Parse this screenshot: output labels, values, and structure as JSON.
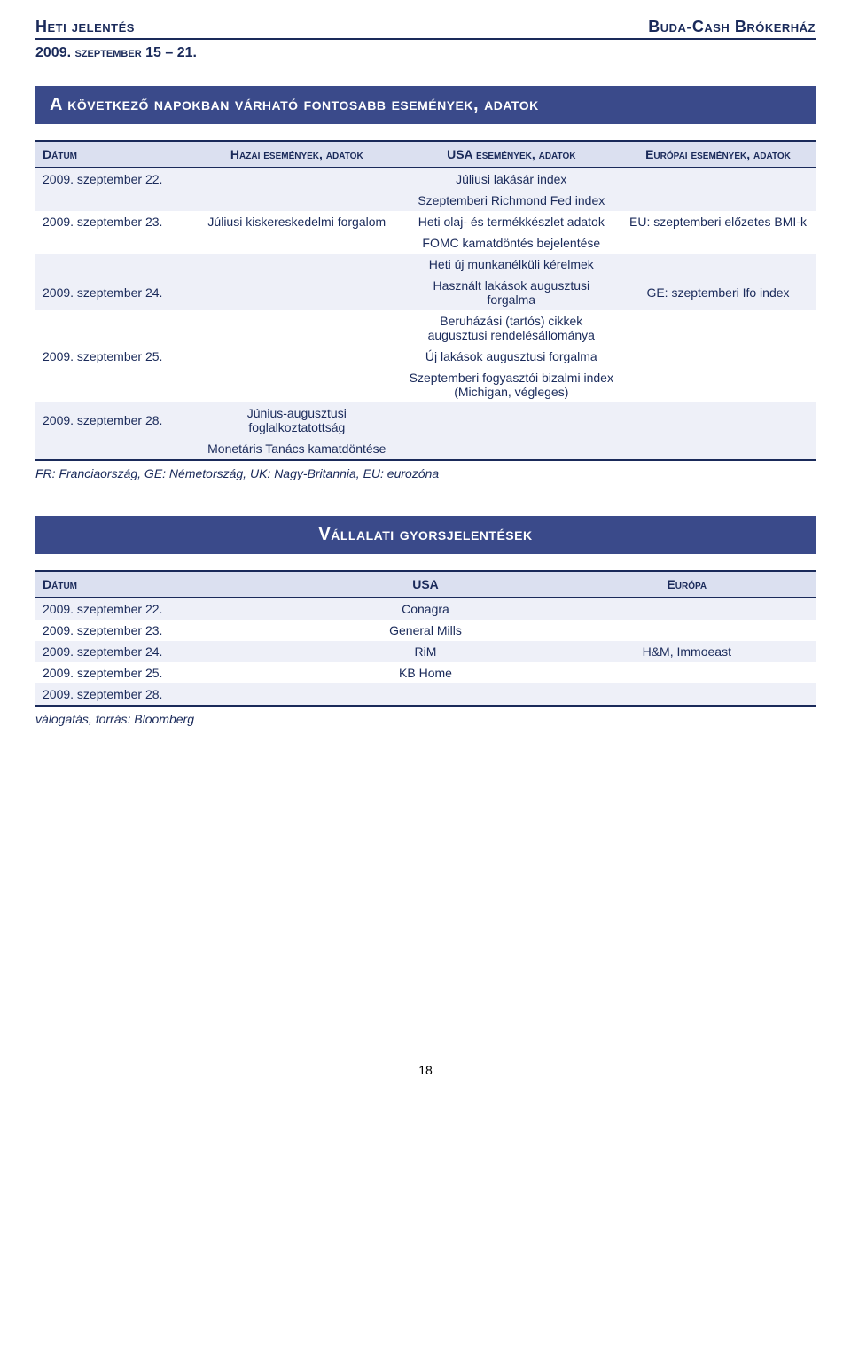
{
  "header": {
    "left": "Heti jelentés",
    "right": "Buda-Cash Brókerház",
    "sub": "2009. szeptember 15 – 21."
  },
  "section1": {
    "title": "A következő napokban várható fontosabb események, adatok",
    "columns": [
      "Dátum",
      "Hazai események, adatok",
      "USA események, adatok",
      "Európai események, adatok"
    ],
    "rows": [
      {
        "date": "2009. szeptember 22.",
        "hazai": "",
        "usa": "Júliusi lakásár index",
        "europa": "",
        "cls": "even"
      },
      {
        "date": "",
        "hazai": "",
        "usa": "Szeptemberi Richmond Fed index",
        "europa": "",
        "cls": "even"
      },
      {
        "date": "2009. szeptember 23.",
        "hazai": "Júliusi kiskereskedelmi forgalom",
        "usa": "Heti olaj- és termékkészlet adatok",
        "europa": "EU: szeptemberi előzetes BMI-k",
        "cls": "odd"
      },
      {
        "date": "",
        "hazai": "",
        "usa": "FOMC kamatdöntés bejelentése",
        "europa": "",
        "cls": "odd"
      },
      {
        "date": "",
        "hazai": "",
        "usa": "Heti új munkanélküli kérelmek",
        "europa": "",
        "cls": "even"
      },
      {
        "date": "2009. szeptember 24.",
        "hazai": "",
        "usa": "Használt lakások augusztusi forgalma",
        "europa": "GE: szeptemberi Ifo index",
        "cls": "even"
      },
      {
        "date": "",
        "hazai": "",
        "usa": "Beruházási (tartós) cikkek augusztusi rendelésállománya",
        "europa": "",
        "cls": "odd"
      },
      {
        "date": "2009. szeptember 25.",
        "hazai": "",
        "usa": "Új lakások augusztusi forgalma",
        "europa": "",
        "cls": "odd"
      },
      {
        "date": "",
        "hazai": "",
        "usa": "Szeptemberi fogyasztói bizalmi index (Michigan, végleges)",
        "europa": "",
        "cls": "odd"
      },
      {
        "date": "2009. szeptember 28.",
        "hazai": "Június-augusztusi foglalkoztatottság",
        "usa": "",
        "europa": "",
        "cls": "even"
      },
      {
        "date": "",
        "hazai": "Monetáris Tanács kamatdöntése",
        "usa": "",
        "europa": "",
        "cls": "even"
      }
    ],
    "footnote": "FR: Franciaország, GE: Németország, UK: Nagy-Britannia, EU: eurozóna"
  },
  "section2": {
    "title": "Vállalati gyorsjelentések",
    "columns": [
      "Dátum",
      "USA",
      "Európa"
    ],
    "rows": [
      {
        "date": "2009. szeptember 22.",
        "usa": "Conagra",
        "europa": "",
        "cls": "even"
      },
      {
        "date": "2009. szeptember 23.",
        "usa": "General Mills",
        "europa": "",
        "cls": "odd"
      },
      {
        "date": "2009. szeptember 24.",
        "usa": "RiM",
        "europa": "H&M, Immoeast",
        "cls": "even"
      },
      {
        "date": "2009. szeptember 25.",
        "usa": "KB Home",
        "europa": "",
        "cls": "odd"
      },
      {
        "date": "2009. szeptember 28.",
        "usa": "",
        "europa": "",
        "cls": "even"
      }
    ],
    "footnote": "válogatás, forrás: Bloomberg"
  },
  "pageNumber": "18",
  "style": {
    "brandColor": "#1a2a5a",
    "bannerBg": "#3a4a8a",
    "headerBg": "#dbe0f0",
    "evenRow": "#eef0f8",
    "oddRow": "#ffffff"
  }
}
